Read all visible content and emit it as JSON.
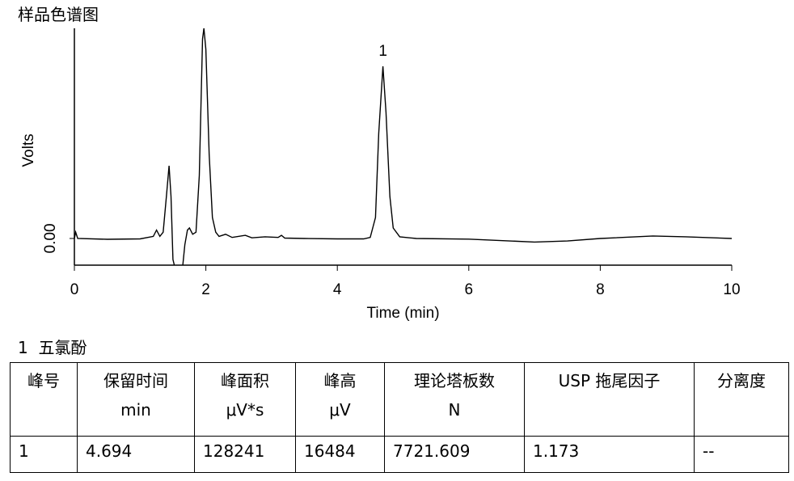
{
  "title": "样品色谱图",
  "chart_data": {
    "type": "line",
    "x": [
      0,
      0.02,
      0.05,
      0.5,
      1.0,
      1.2,
      1.25,
      1.3,
      1.35,
      1.4,
      1.44,
      1.47,
      1.5,
      1.52,
      1.58,
      1.65,
      1.68,
      1.72,
      1.75,
      1.8,
      1.85,
      1.9,
      1.95,
      1.97,
      2.0,
      2.05,
      2.1,
      2.15,
      2.2,
      2.3,
      2.4,
      2.6,
      2.7,
      2.9,
      3.1,
      3.15,
      3.2,
      3.5,
      4.0,
      4.4,
      4.5,
      4.58,
      4.63,
      4.694,
      4.74,
      4.8,
      4.85,
      4.95,
      5.2,
      6.0,
      7.0,
      7.5,
      8.0,
      8.8,
      9.3,
      10.0
    ],
    "series": [
      {
        "name": "Volts",
        "color": "#000000",
        "values": [
          0.0,
          0.03,
          0,
          -0.004,
          -0.002,
          0.01,
          0.04,
          0.01,
          0.03,
          0.2,
          0.346,
          0.2,
          -0.1,
          -0.127,
          null,
          -0.127,
          -0.03,
          0.04,
          0.05,
          0.02,
          0.03,
          0.3,
          0.95,
          1.0,
          0.9,
          0.4,
          0.1,
          0.03,
          0.01,
          0.02,
          0.005,
          0.015,
          0.003,
          0.008,
          0.005,
          0.015,
          0.002,
          0.0,
          -0.002,
          -0.002,
          0.005,
          0.1,
          0.5,
          0.819,
          0.6,
          0.2,
          0.05,
          0.008,
          0.0,
          -0.003,
          -0.017,
          -0.012,
          0.0,
          0.012,
          0.008,
          0.0
        ]
      }
    ],
    "xlabel": "Time (min)",
    "ylabel": "Volts",
    "xlim": [
      0,
      10
    ],
    "xticks": [
      0,
      2,
      4,
      6,
      8,
      10
    ],
    "ylim": [
      -0.127,
      1.0
    ],
    "yticks": [
      {
        "value": 0,
        "label": "0.00"
      }
    ],
    "annotations": [
      {
        "x": 4.694,
        "text": "1"
      }
    ]
  },
  "compound": "1  五氯酚",
  "table": {
    "header": [
      [
        "峰号"
      ],
      [
        "保留时间",
        "min"
      ],
      [
        "峰面积",
        "μV*s"
      ],
      [
        "峰高",
        "μV"
      ],
      [
        "理论塔板数",
        "N"
      ],
      [
        "USP 拖尾因子"
      ],
      [
        "分离度"
      ]
    ],
    "rows": [
      [
        "1",
        "4.694",
        "128241",
        "16484",
        "7721.609",
        "1.173",
        "--"
      ]
    ]
  }
}
